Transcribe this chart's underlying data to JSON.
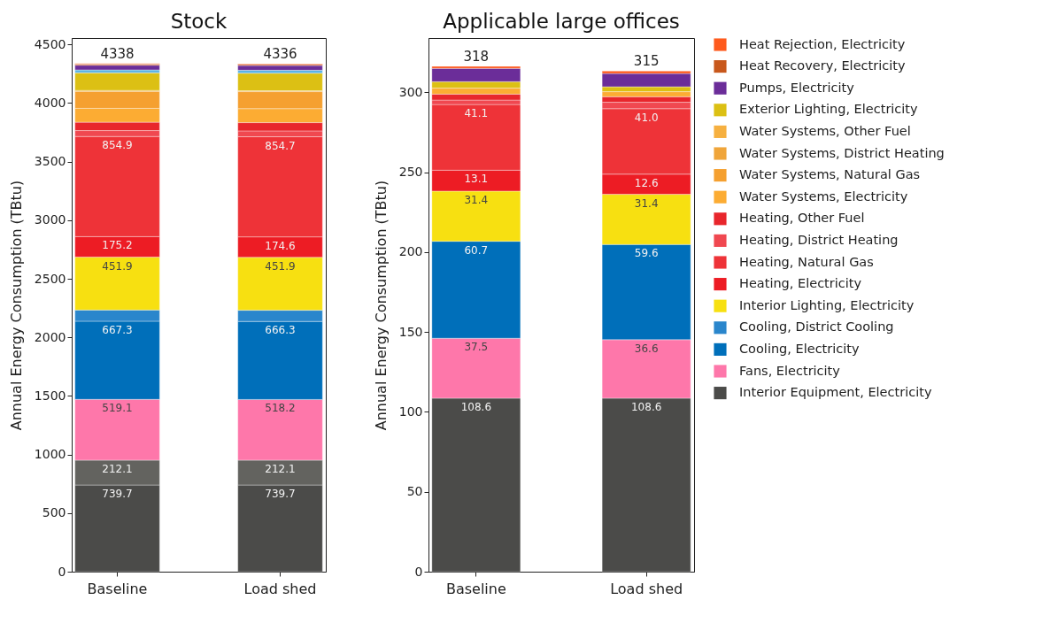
{
  "chart_data": [
    {
      "type": "bar",
      "title": "Stock",
      "ylabel": "Annual Energy Consumption (TBtu)",
      "categories": [
        "Baseline",
        "Load shed"
      ],
      "stacked": true,
      "ylim": [
        0,
        4555
      ],
      "yticks": [
        0,
        500,
        1000,
        1500,
        2000,
        2500,
        3000,
        3500,
        4000,
        4500
      ],
      "totals": [
        "4338",
        "4336"
      ],
      "series": [
        {
          "color": "#4b4b49",
          "values": [
            739.7,
            739.7
          ],
          "value_labels": [
            "739.7",
            "739.7"
          ]
        },
        {
          "color": "#63635f",
          "values": [
            212.1,
            212.1
          ],
          "value_labels": [
            "212.1",
            "212.1"
          ]
        },
        {
          "color": "#fe77aa",
          "values": [
            519.1,
            518.2
          ],
          "value_labels": [
            "519.1",
            "518.2"
          ]
        },
        {
          "color": "#006fba",
          "values": [
            667.3,
            666.3
          ],
          "value_labels": [
            "667.3",
            "666.3"
          ]
        },
        {
          "color": "#2a86cc",
          "values": [
            95,
            95
          ],
          "value_labels": [
            null,
            null
          ]
        },
        {
          "color": "#f7e011",
          "values": [
            451.9,
            451.9
          ],
          "value_labels": [
            "451.9",
            "451.9"
          ]
        },
        {
          "color": "#ed1c24",
          "values": [
            175.2,
            174.6
          ],
          "value_labels": [
            "175.2",
            "174.6"
          ]
        },
        {
          "color": "#ee3338",
          "values": [
            854.9,
            854.7
          ],
          "value_labels": [
            "854.9",
            "854.7"
          ]
        },
        {
          "color": "#f04850",
          "values": [
            50,
            50
          ],
          "value_labels": [
            null,
            null
          ]
        },
        {
          "color": "#e8262c",
          "values": [
            70,
            70
          ],
          "value_labels": [
            null,
            null
          ]
        },
        {
          "color": "#fcac33",
          "values": [
            120,
            120
          ],
          "value_labels": [
            null,
            null
          ]
        },
        {
          "color": "#f5a030",
          "values": [
            145,
            145
          ],
          "value_labels": [
            null,
            null
          ]
        },
        {
          "color": "#f0a53a",
          "values": [
            8,
            8
          ],
          "value_labels": [
            null,
            null
          ]
        },
        {
          "color": "#dcc014",
          "values": [
            150,
            150
          ],
          "value_labels": [
            null,
            null
          ]
        },
        {
          "color": "#5ab4e5",
          "values": [
            25,
            25
          ],
          "value_labels": [
            null,
            null
          ]
        },
        {
          "color": "#6b2d99",
          "values": [
            40,
            40
          ],
          "value_labels": [
            null,
            null
          ]
        },
        {
          "color": "#c8581c",
          "values": [
            10,
            10
          ],
          "value_labels": [
            null,
            null
          ]
        },
        {
          "color": "#fe5a1d",
          "values": [
            5,
            5
          ],
          "value_labels": [
            null,
            null
          ]
        }
      ]
    },
    {
      "type": "bar",
      "title": "Applicable large offices",
      "ylabel": "Annual Energy Consumption (TBtu)",
      "categories": [
        "Baseline",
        "Load shed"
      ],
      "stacked": true,
      "ylim": [
        0,
        334
      ],
      "yticks": [
        0,
        50,
        100,
        150,
        200,
        250,
        300
      ],
      "legend": "right",
      "totals": [
        "318",
        "315"
      ],
      "series": [
        {
          "name": "Interior Equipment, Electricity",
          "color": "#4b4b49",
          "values": [
            108.6,
            108.6
          ],
          "value_labels": [
            "108.6",
            "108.6"
          ]
        },
        {
          "name": "Fans, Electricity",
          "color": "#fe77aa",
          "values": [
            37.5,
            36.6
          ],
          "value_labels": [
            "37.5",
            "36.6"
          ]
        },
        {
          "name": "Cooling, Electricity",
          "color": "#006fba",
          "values": [
            60.7,
            59.6
          ],
          "value_labels": [
            "60.7",
            "59.6"
          ]
        },
        {
          "name": "Cooling, District Cooling",
          "color": "#2a86cc",
          "values": [
            null,
            null
          ],
          "value_labels": [
            null,
            null
          ]
        },
        {
          "name": "Interior Lighting, Electricity",
          "color": "#f7e011",
          "values": [
            31.4,
            31.4
          ],
          "value_labels": [
            "31.4",
            "31.4"
          ]
        },
        {
          "name": "Heating, Electricity",
          "color": "#ed1c24",
          "values": [
            13.1,
            12.6
          ],
          "value_labels": [
            "13.1",
            "12.6"
          ]
        },
        {
          "name": "Heating, Natural Gas",
          "color": "#ee3338",
          "values": [
            41.1,
            41.0
          ],
          "value_labels": [
            "41.1",
            "41.0"
          ]
        },
        {
          "name": "Heating, District Heating",
          "color": "#f04850",
          "values": [
            2.8,
            4
          ],
          "value_labels": [
            null,
            null
          ]
        },
        {
          "name": "Heating, Other Fuel",
          "color": "#e8262c",
          "values": [
            3.7,
            3.5
          ],
          "value_labels": [
            null,
            null
          ]
        },
        {
          "name": "Water Systems, Electricity",
          "color": "#fcac33",
          "values": [
            3.7,
            3.1
          ],
          "value_labels": [
            null,
            null
          ]
        },
        {
          "name": "Water Systems, Natural Gas",
          "color": "#f5a030",
          "values": [
            null,
            null
          ],
          "value_labels": [
            null,
            null
          ]
        },
        {
          "name": "Water Systems, District Heating",
          "color": "#f0a53a",
          "values": [
            null,
            null
          ],
          "value_labels": [
            null,
            null
          ]
        },
        {
          "name": "Water Systems, Other Fuel",
          "color": "#f6b040",
          "values": [
            null,
            null
          ],
          "value_labels": [
            null,
            null
          ]
        },
        {
          "name": "Exterior Lighting, Electricity",
          "color": "#dcc014",
          "values": [
            4.1,
            3.1
          ],
          "value_labels": [
            null,
            null
          ]
        },
        {
          "name": "Pumps, Electricity",
          "color": "#6b2d99",
          "values": [
            8.3,
            8.3
          ],
          "value_labels": [
            null,
            null
          ]
        },
        {
          "name": "Heat Recovery, Electricity",
          "color": "#c8581c",
          "values": [
            null,
            null
          ],
          "value_labels": [
            null,
            null
          ]
        },
        {
          "name": "Heat Rejection, Electricity",
          "color": "#fe5a1d",
          "values": [
            1.3,
            1.5
          ],
          "value_labels": [
            null,
            null
          ]
        }
      ]
    }
  ]
}
